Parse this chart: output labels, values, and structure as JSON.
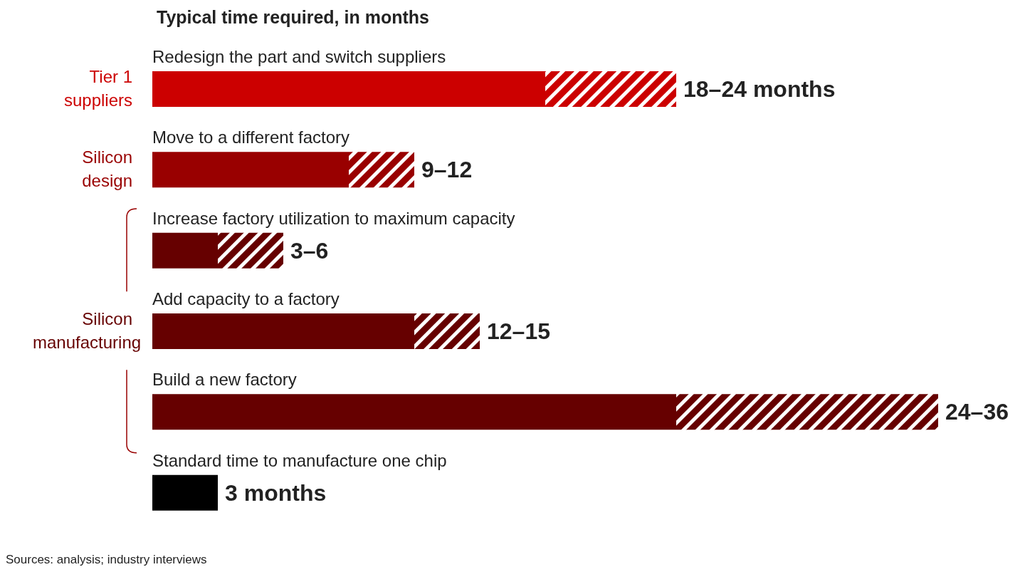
{
  "chart_data": {
    "type": "bar",
    "orientation": "horizontal",
    "stacked": true,
    "title": "Typical time required, in months",
    "categories": [
      "Redesign the part and switch suppliers",
      "Move to a different factory",
      "Increase factory utilization to maximum capacity",
      "Add capacity to a factory",
      "Build a new factory",
      "Standard time to manufacture one chip"
    ],
    "series": [
      {
        "colors": [
          "#cc0000",
          "#990000",
          "#660000",
          "#660000",
          "#660000",
          "#000000"
        ],
        "values": [
          18,
          9,
          3,
          12,
          24,
          3
        ],
        "value_labels": [
          null,
          null,
          null,
          null,
          null,
          "3 months"
        ]
      },
      {
        "colors": [
          "#cc0000",
          "#990000",
          "#660000",
          "#660000",
          "#660000",
          "#000000"
        ],
        "values": [
          6,
          3,
          3,
          3,
          12,
          null
        ],
        "value_labels": [
          "18–24 months",
          "9–12",
          "3–6",
          "12–15",
          "24–36",
          null
        ]
      }
    ],
    "annotations": [
      "Tier 1 suppliers",
      "Silicon design",
      "Silicon manufacturing",
      "Sources: analysis; industry interviews"
    ]
  }
}
